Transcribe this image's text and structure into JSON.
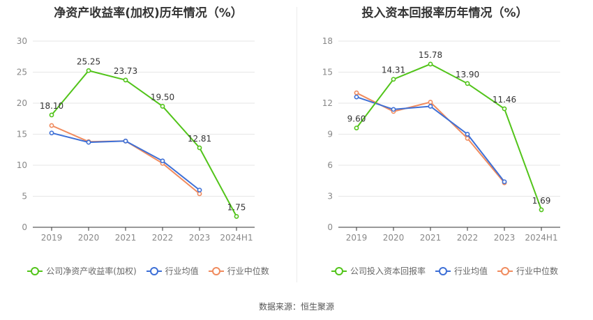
{
  "source_text": "数据来源：恒生聚源",
  "chart_data": [
    {
      "type": "line",
      "title": "净资产收益率(加权)历年情况（%）",
      "categories": [
        "2019",
        "2020",
        "2021",
        "2022",
        "2023",
        "2024H1"
      ],
      "ylim": [
        0,
        30
      ],
      "yticks": [
        0,
        5,
        10,
        15,
        20,
        25,
        30
      ],
      "grid": true,
      "legend_position": "bottom",
      "series": [
        {
          "name": "公司净资产收益率(加权)",
          "color": "#52c41a",
          "values": [
            18.1,
            25.25,
            23.73,
            19.5,
            12.81,
            1.75
          ],
          "labels": [
            "18.10",
            "25.25",
            "23.73",
            "19.50",
            "12.81",
            "1.75"
          ]
        },
        {
          "name": "行业均值",
          "color": "#3d6fd6",
          "values": [
            15.2,
            13.7,
            13.9,
            10.7,
            6.0,
            null
          ]
        },
        {
          "name": "行业中位数",
          "color": "#f08b5e",
          "values": [
            16.4,
            13.8,
            13.9,
            10.3,
            5.4,
            null
          ]
        }
      ]
    },
    {
      "type": "line",
      "title": "投入资本回报率历年情况（%）",
      "categories": [
        "2019",
        "2020",
        "2021",
        "2022",
        "2023",
        "2024H1"
      ],
      "ylim": [
        0,
        18
      ],
      "yticks": [
        0,
        3,
        6,
        9,
        12,
        15,
        18
      ],
      "grid": true,
      "legend_position": "bottom",
      "series": [
        {
          "name": "公司投入资本回报率",
          "color": "#52c41a",
          "values": [
            9.6,
            14.31,
            15.78,
            13.9,
            11.46,
            1.69
          ],
          "labels": [
            "9.60",
            "14.31",
            "15.78",
            "13.90",
            "11.46",
            "1.69"
          ]
        },
        {
          "name": "行业均值",
          "color": "#3d6fd6",
          "values": [
            12.6,
            11.4,
            11.7,
            9.0,
            4.4,
            null
          ]
        },
        {
          "name": "行业中位数",
          "color": "#f08b5e",
          "values": [
            13.0,
            11.2,
            12.1,
            8.6,
            4.3,
            null
          ]
        }
      ]
    }
  ]
}
